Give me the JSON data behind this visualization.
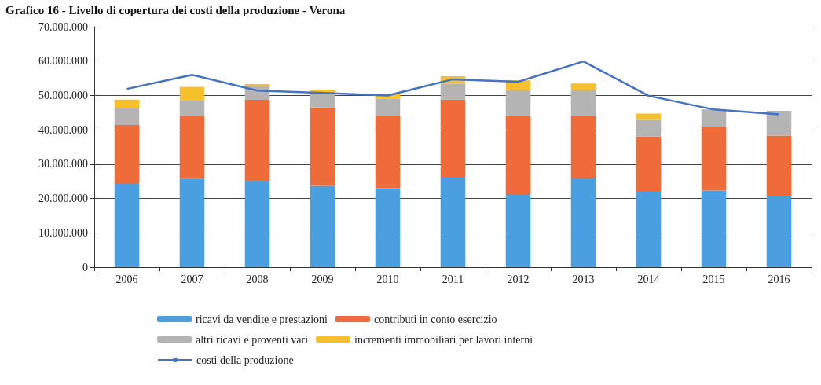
{
  "chart_data": {
    "type": "bar",
    "stacked": true,
    "title": "Grafico 16 - Livello di copertura dei costi della produzione - Verona",
    "categories": [
      "2006",
      "2007",
      "2008",
      "2009",
      "2010",
      "2011",
      "2012",
      "2013",
      "2014",
      "2015",
      "2016"
    ],
    "series": [
      {
        "name": "ricavi da vendite e prestazioni",
        "color": "#4a9fe0",
        "values": [
          24500000,
          25800000,
          25100000,
          23700000,
          23000000,
          26300000,
          21300000,
          25900000,
          22200000,
          22300000,
          20800000
        ]
      },
      {
        "name": "contributi in conto esercizio",
        "color": "#ef6c3a",
        "values": [
          16900000,
          18200000,
          23600000,
          22800000,
          21000000,
          22500000,
          22600000,
          18000000,
          15900000,
          18600000,
          17500000
        ]
      },
      {
        "name": "altri ricavi e proventi vari",
        "color": "#b4b4b4",
        "values": [
          4800000,
          4500000,
          3900000,
          4500000,
          5000000,
          4700000,
          7600000,
          7600000,
          4800000,
          5000000,
          7200000
        ]
      },
      {
        "name": "incrementi immobiliari per lavori interni",
        "color": "#f5c02c",
        "values": [
          2600000,
          4000000,
          700000,
          700000,
          1300000,
          2100000,
          2900000,
          2000000,
          1800000,
          0,
          0
        ]
      },
      {
        "name": "costi della produzione",
        "type": "line",
        "color": "#4472c4",
        "marker": "none",
        "values": [
          51900000,
          56000000,
          51400000,
          50700000,
          50000000,
          54700000,
          54000000,
          59900000,
          49900000,
          45900000,
          44500000
        ]
      }
    ],
    "ylim": [
      0,
      70000000
    ],
    "yticks": [
      {
        "value": 0,
        "label": "0"
      },
      {
        "value": 10000000,
        "label": "10.000.000"
      },
      {
        "value": 20000000,
        "label": "20.000.000"
      },
      {
        "value": 30000000,
        "label": "30.000.000"
      },
      {
        "value": 40000000,
        "label": "40.000.000"
      },
      {
        "value": 50000000,
        "label": "50.000.000"
      },
      {
        "value": 60000000,
        "label": "60.000.000"
      },
      {
        "value": 70000000,
        "label": "70.000.000"
      }
    ],
    "grid": "y",
    "legend": "bottom"
  }
}
